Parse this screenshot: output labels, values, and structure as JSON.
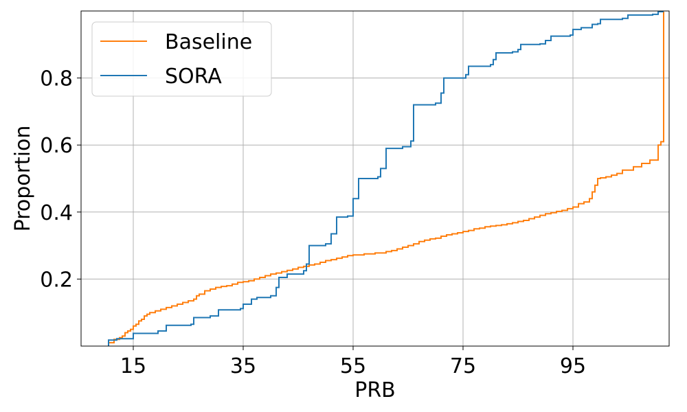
{
  "chart_data": {
    "type": "line",
    "title": "",
    "xlabel": "PRB",
    "ylabel": "Proportion",
    "xlim": [
      5.5,
      112.5
    ],
    "ylim": [
      0.0,
      1.0
    ],
    "xticks": [
      15,
      35,
      55,
      75,
      95
    ],
    "yticks": [
      0.2,
      0.4,
      0.6,
      0.8
    ],
    "grid": true,
    "legend_position": "top-left",
    "series": [
      {
        "name": "Baseline",
        "color": "#ff7f0e",
        "step": true,
        "points": [
          [
            10.5,
            0.0
          ],
          [
            10.5,
            0.01
          ],
          [
            11.5,
            0.02
          ],
          [
            12.5,
            0.025
          ],
          [
            13.0,
            0.03
          ],
          [
            13.5,
            0.04
          ],
          [
            14.0,
            0.045
          ],
          [
            14.5,
            0.05
          ],
          [
            15.0,
            0.06
          ],
          [
            15.5,
            0.065
          ],
          [
            16.0,
            0.075
          ],
          [
            16.5,
            0.08
          ],
          [
            17.0,
            0.09
          ],
          [
            17.5,
            0.095
          ],
          [
            18.0,
            0.1
          ],
          [
            19.0,
            0.105
          ],
          [
            20.0,
            0.11
          ],
          [
            21.0,
            0.115
          ],
          [
            22.0,
            0.12
          ],
          [
            23.0,
            0.125
          ],
          [
            24.0,
            0.13
          ],
          [
            25.0,
            0.135
          ],
          [
            26.0,
            0.14
          ],
          [
            26.5,
            0.15
          ],
          [
            27.0,
            0.155
          ],
          [
            28.0,
            0.165
          ],
          [
            29.0,
            0.17
          ],
          [
            30.0,
            0.175
          ],
          [
            31.0,
            0.178
          ],
          [
            32.0,
            0.18
          ],
          [
            33.0,
            0.185
          ],
          [
            34.0,
            0.19
          ],
          [
            35.0,
            0.192
          ],
          [
            36.0,
            0.195
          ],
          [
            37.0,
            0.2
          ],
          [
            38.0,
            0.205
          ],
          [
            39.0,
            0.21
          ],
          [
            40.0,
            0.215
          ],
          [
            41.0,
            0.218
          ],
          [
            42.0,
            0.222
          ],
          [
            43.0,
            0.226
          ],
          [
            44.0,
            0.23
          ],
          [
            45.0,
            0.235
          ],
          [
            46.0,
            0.238
          ],
          [
            47.0,
            0.242
          ],
          [
            48.0,
            0.245
          ],
          [
            49.0,
            0.25
          ],
          [
            50.0,
            0.255
          ],
          [
            51.0,
            0.258
          ],
          [
            52.0,
            0.262
          ],
          [
            53.0,
            0.266
          ],
          [
            54.0,
            0.27
          ],
          [
            55.0,
            0.272
          ],
          [
            57.0,
            0.275
          ],
          [
            59.0,
            0.278
          ],
          [
            61.0,
            0.282
          ],
          [
            62.0,
            0.285
          ],
          [
            63.0,
            0.29
          ],
          [
            64.0,
            0.295
          ],
          [
            65.0,
            0.3
          ],
          [
            66.0,
            0.305
          ],
          [
            67.0,
            0.312
          ],
          [
            68.0,
            0.316
          ],
          [
            69.0,
            0.32
          ],
          [
            70.0,
            0.322
          ],
          [
            71.0,
            0.328
          ],
          [
            72.0,
            0.332
          ],
          [
            73.0,
            0.335
          ],
          [
            74.0,
            0.338
          ],
          [
            75.0,
            0.342
          ],
          [
            76.0,
            0.345
          ],
          [
            77.0,
            0.35
          ],
          [
            78.0,
            0.352
          ],
          [
            79.0,
            0.356
          ],
          [
            80.0,
            0.358
          ],
          [
            81.0,
            0.36
          ],
          [
            82.0,
            0.362
          ],
          [
            83.0,
            0.365
          ],
          [
            84.0,
            0.368
          ],
          [
            85.0,
            0.372
          ],
          [
            86.0,
            0.375
          ],
          [
            87.0,
            0.38
          ],
          [
            88.0,
            0.385
          ],
          [
            89.0,
            0.39
          ],
          [
            90.0,
            0.395
          ],
          [
            91.0,
            0.398
          ],
          [
            92.0,
            0.402
          ],
          [
            93.0,
            0.405
          ],
          [
            94.0,
            0.41
          ],
          [
            95.0,
            0.415
          ],
          [
            96.0,
            0.425
          ],
          [
            97.0,
            0.43
          ],
          [
            98.0,
            0.44
          ],
          [
            98.5,
            0.46
          ],
          [
            99.0,
            0.48
          ],
          [
            99.5,
            0.5
          ],
          [
            100.0,
            0.502
          ],
          [
            101.0,
            0.505
          ],
          [
            102.0,
            0.51
          ],
          [
            103.0,
            0.515
          ],
          [
            104.0,
            0.525
          ],
          [
            106.0,
            0.535
          ],
          [
            107.5,
            0.545
          ],
          [
            109.0,
            0.555
          ],
          [
            110.5,
            0.6
          ],
          [
            111.0,
            0.61
          ],
          [
            111.5,
            0.61
          ],
          [
            111.5,
            0.998
          ]
        ]
      },
      {
        "name": "SORA",
        "color": "#1f77b4",
        "step": true,
        "points": [
          [
            10.5,
            0.0
          ],
          [
            10.5,
            0.018
          ],
          [
            12.0,
            0.022
          ],
          [
            15.0,
            0.038
          ],
          [
            19.5,
            0.045
          ],
          [
            21.0,
            0.062
          ],
          [
            25.5,
            0.065
          ],
          [
            26.0,
            0.085
          ],
          [
            29.0,
            0.09
          ],
          [
            30.5,
            0.108
          ],
          [
            34.5,
            0.112
          ],
          [
            35.0,
            0.125
          ],
          [
            36.5,
            0.14
          ],
          [
            37.5,
            0.145
          ],
          [
            40.0,
            0.15
          ],
          [
            41.0,
            0.175
          ],
          [
            41.5,
            0.205
          ],
          [
            43.0,
            0.215
          ],
          [
            46.0,
            0.225
          ],
          [
            46.5,
            0.245
          ],
          [
            47.0,
            0.3
          ],
          [
            50.0,
            0.305
          ],
          [
            51.0,
            0.335
          ],
          [
            52.0,
            0.385
          ],
          [
            54.0,
            0.388
          ],
          [
            55.0,
            0.44
          ],
          [
            56.0,
            0.5
          ],
          [
            59.5,
            0.505
          ],
          [
            60.0,
            0.53
          ],
          [
            61.0,
            0.59
          ],
          [
            64.0,
            0.595
          ],
          [
            65.5,
            0.612
          ],
          [
            66.0,
            0.72
          ],
          [
            70.0,
            0.725
          ],
          [
            71.0,
            0.755
          ],
          [
            71.5,
            0.8
          ],
          [
            75.5,
            0.81
          ],
          [
            76.0,
            0.835
          ],
          [
            80.0,
            0.84
          ],
          [
            80.5,
            0.855
          ],
          [
            81.0,
            0.875
          ],
          [
            84.0,
            0.878
          ],
          [
            85.0,
            0.885
          ],
          [
            85.5,
            0.9
          ],
          [
            89.0,
            0.902
          ],
          [
            90.0,
            0.912
          ],
          [
            91.0,
            0.925
          ],
          [
            94.5,
            0.928
          ],
          [
            95.0,
            0.945
          ],
          [
            96.5,
            0.95
          ],
          [
            98.5,
            0.96
          ],
          [
            99.5,
            0.962
          ],
          [
            100.0,
            0.975
          ],
          [
            104.0,
            0.978
          ],
          [
            105.0,
            0.988
          ],
          [
            109.5,
            0.99
          ],
          [
            110.5,
            0.998
          ],
          [
            111.5,
            0.998
          ]
        ]
      }
    ]
  }
}
